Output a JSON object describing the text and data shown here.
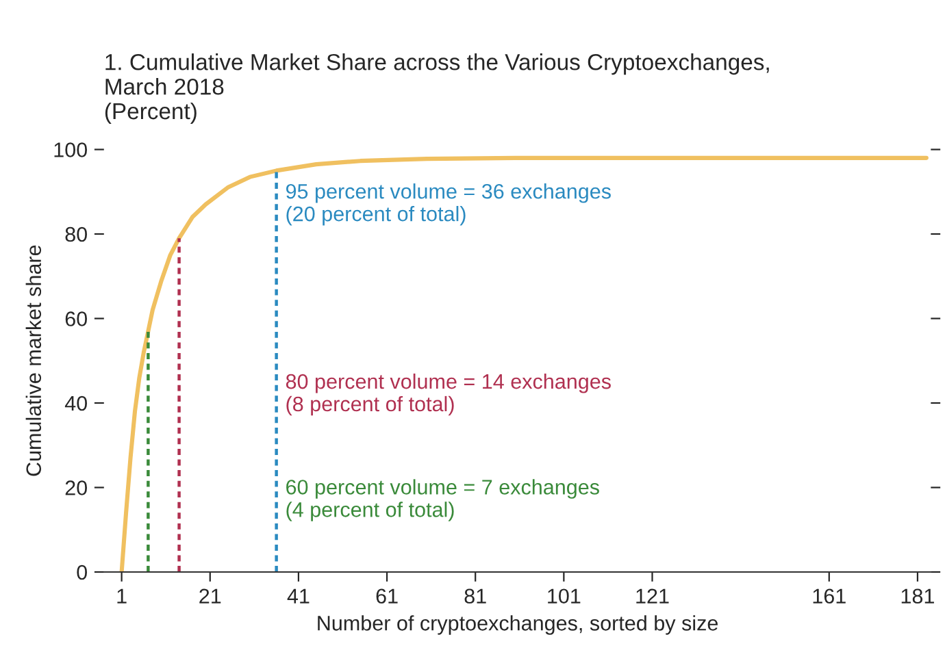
{
  "chart_data": {
    "type": "line",
    "title": "1. Cumulative Market Share across the Various Cryptoexchanges,\nMarch 2018\n(Percent)",
    "xlabel": "Number of cryptoexchanges, sorted by size",
    "ylabel": "Cumulative market share",
    "xlim": [
      -3,
      184
    ],
    "ylim": [
      0,
      100
    ],
    "xticks": [
      1,
      21,
      41,
      61,
      81,
      101,
      121,
      161,
      181
    ],
    "yticks": [
      0,
      20,
      40,
      60,
      80,
      100
    ],
    "grid": false,
    "legend": false,
    "marker": "none",
    "series": [
      {
        "color": "#f0c060",
        "line_style": "solid",
        "x": [
          1,
          2,
          3,
          4,
          5,
          6,
          7,
          8,
          10,
          12,
          14,
          17,
          20,
          25,
          30,
          36,
          45,
          55,
          70,
          90,
          120,
          150,
          183
        ],
        "values": [
          0,
          14,
          27,
          38,
          46,
          52,
          57,
          62,
          69,
          75,
          79,
          84,
          87,
          91,
          93.5,
          95,
          96.5,
          97.3,
          97.8,
          98,
          98,
          98,
          98
        ]
      },
      {
        "name": "60 percent volume = 7 exchanges\n(4 percent of total)",
        "color": "#3a8a3a",
        "line_style": "dashed",
        "x": [
          7,
          7
        ],
        "values": [
          0,
          57
        ]
      },
      {
        "name": "80 percent volume = 14 exchanges\n(8 percent of total)",
        "color": "#b03050",
        "line_style": "dashed",
        "x": [
          14,
          14
        ],
        "values": [
          0,
          79
        ]
      },
      {
        "name": "95 percent volume = 36 exchanges\n(20 percent of total)",
        "color": "#2a8ac0",
        "line_style": "dashed",
        "x": [
          36,
          36
        ],
        "values": [
          0,
          95
        ]
      }
    ]
  }
}
